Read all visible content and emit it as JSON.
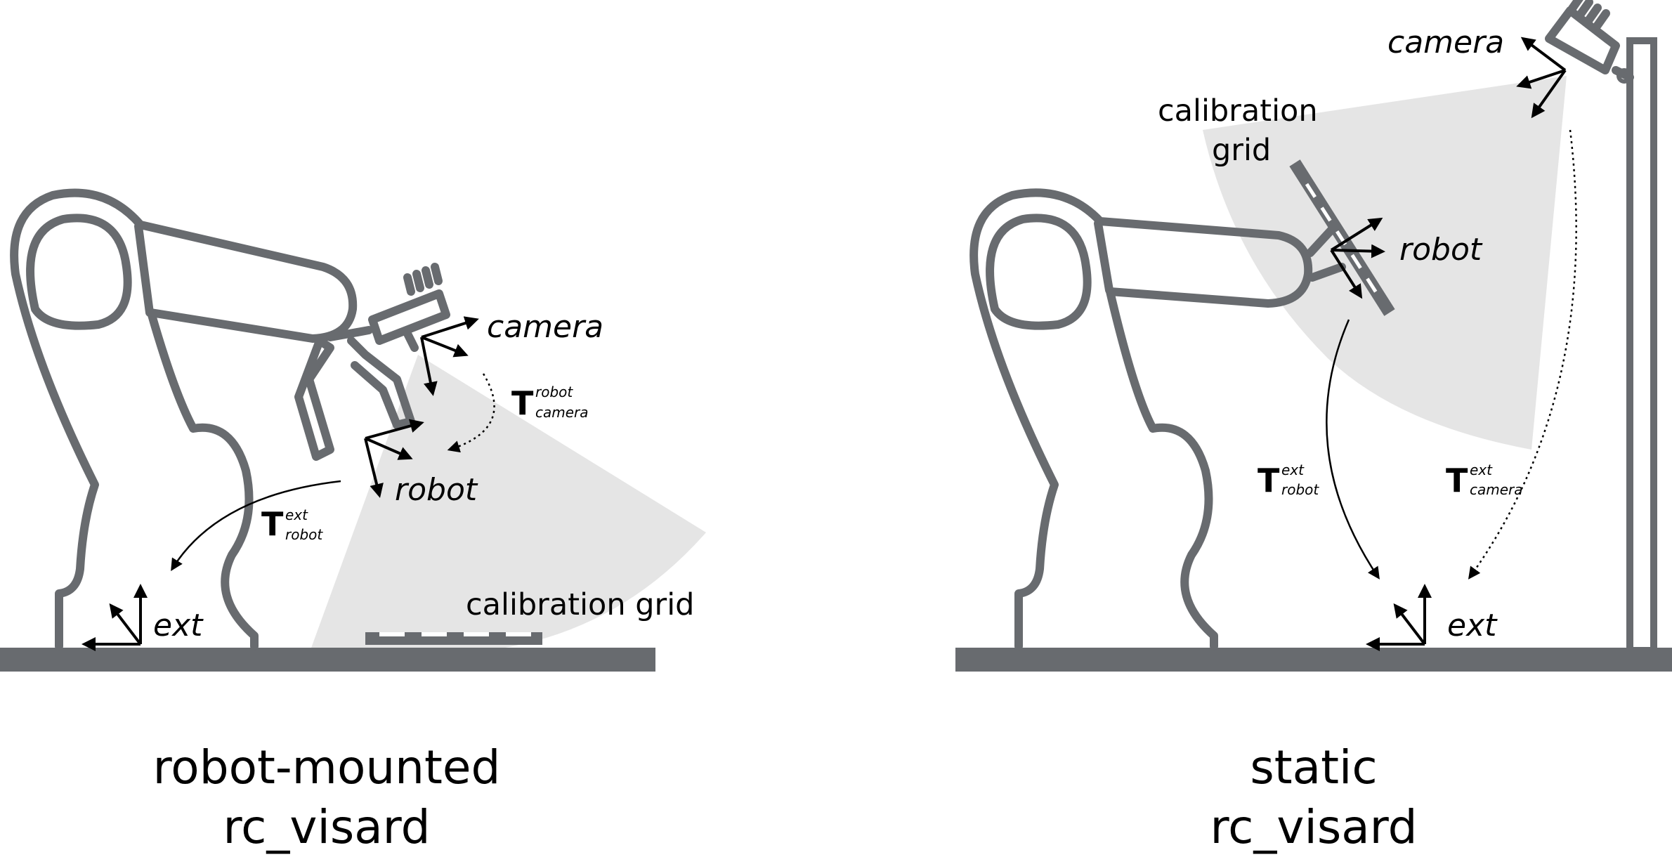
{
  "left": {
    "frames": {
      "camera": "camera",
      "robot": "robot",
      "ext": "ext"
    },
    "grid_label": "calibration grid",
    "transforms": [
      {
        "main": "T",
        "sup": "robot",
        "sub": "camera"
      },
      {
        "main": "T",
        "sup": "ext",
        "sub": "robot"
      }
    ],
    "caption": [
      "robot-mounted",
      "rc_visard"
    ]
  },
  "right": {
    "frames": {
      "camera": "camera",
      "robot": "robot",
      "ext": "ext"
    },
    "grid_label": [
      "calibration",
      "grid"
    ],
    "transforms": [
      {
        "main": "T",
        "sup": "ext",
        "sub": "robot"
      },
      {
        "main": "T",
        "sup": "ext",
        "sub": "camera"
      }
    ],
    "caption": [
      "static",
      "rc_visard"
    ]
  },
  "colors": {
    "robot": "#686b6f",
    "fov": "#e5e5e5",
    "arrows": "#000000"
  }
}
